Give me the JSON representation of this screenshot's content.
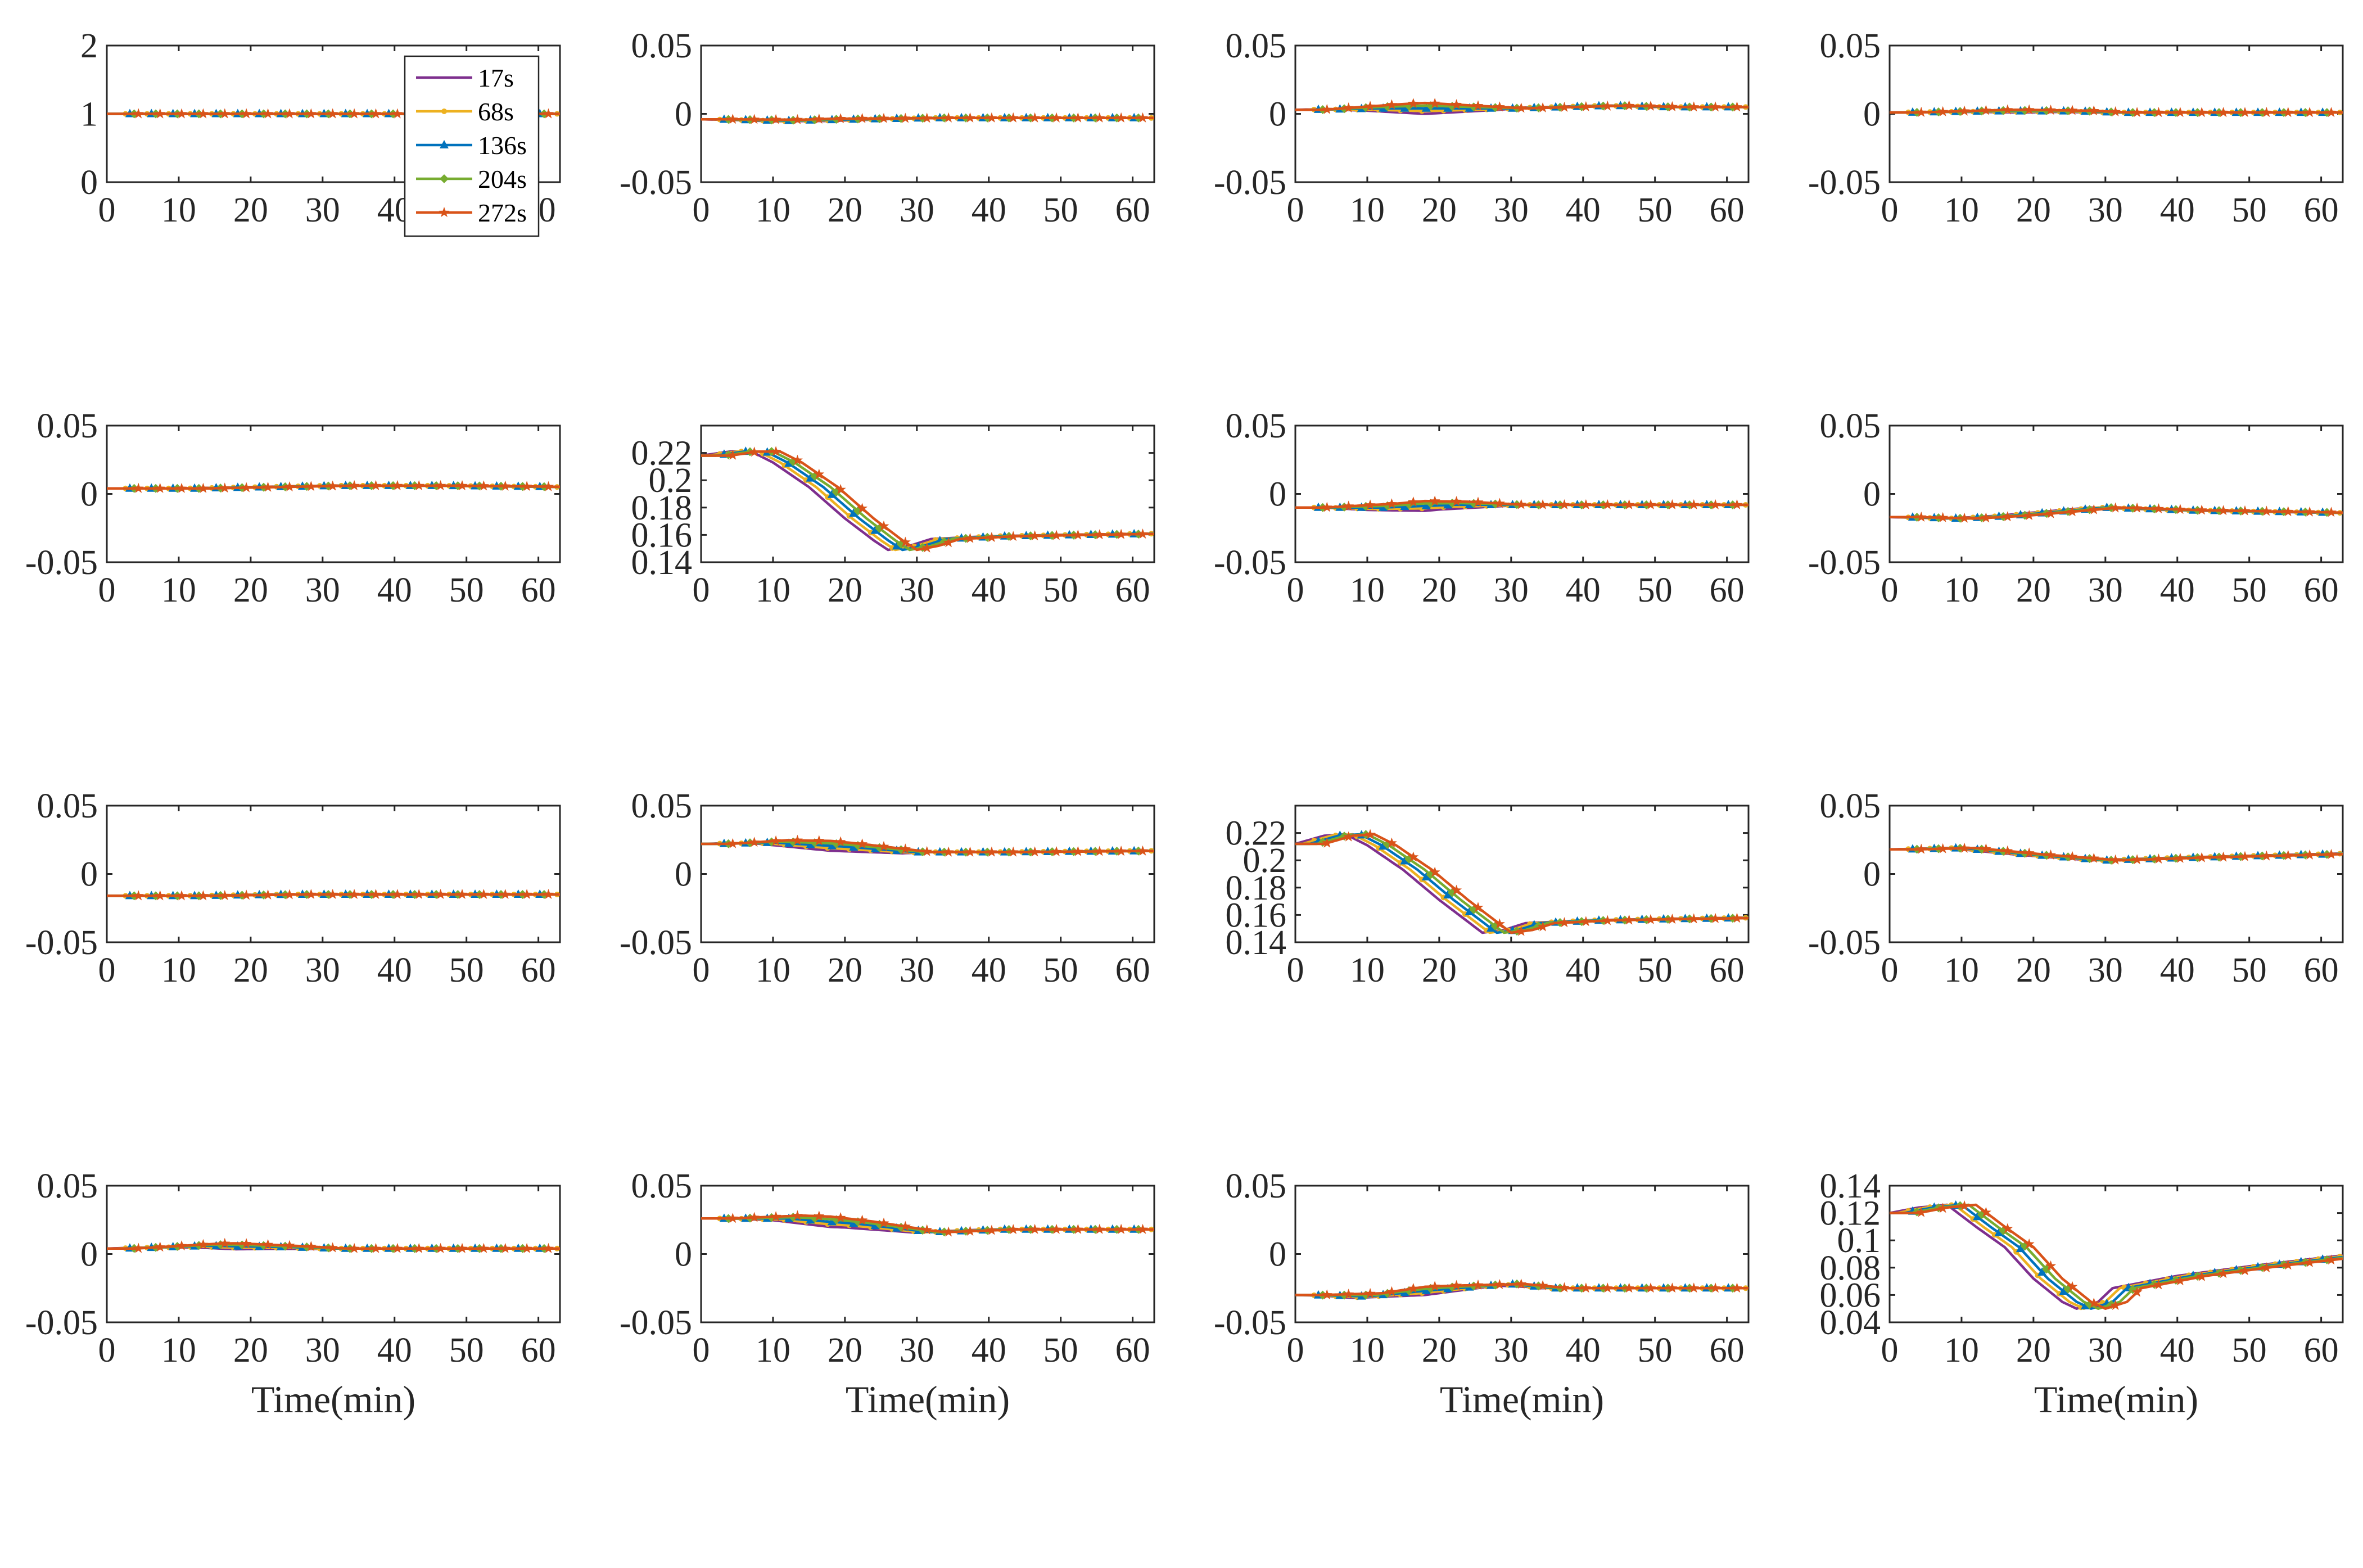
{
  "chart_data": {
    "type": "line",
    "series_names": [
      "17s",
      "68s",
      "136s",
      "204s",
      "272s"
    ],
    "series_colors": [
      "#7E2F8E",
      "#EDB120",
      "#0072BD",
      "#77AC30",
      "#D95319"
    ],
    "x_ticks": [
      0,
      10,
      20,
      30,
      40,
      50,
      60
    ],
    "xlim": [
      0,
      63
    ],
    "xlabel": "Time(min)",
    "legend_position": "top-right of first panel",
    "grid": false,
    "panels": [
      {
        "ylim": [
          0,
          2
        ],
        "yticks": [
          0,
          1,
          2
        ],
        "ytick_labels": [
          "0",
          "1",
          "2"
        ],
        "keypoints": [
          [
            0,
            1
          ],
          [
            63,
            1
          ]
        ],
        "spread": 0
      },
      {
        "ylim": [
          -0.05,
          0.05
        ],
        "yticks": [
          -0.05,
          0,
          0.05
        ],
        "ytick_labels": [
          "-0.05",
          "0",
          "0.05"
        ],
        "keypoints": [
          [
            0,
            -0.004
          ],
          [
            10,
            -0.005
          ],
          [
            20,
            -0.004
          ],
          [
            30,
            -0.003
          ],
          [
            40,
            -0.003
          ],
          [
            63,
            -0.003
          ]
        ],
        "spread": 0.001
      },
      {
        "ylim": [
          -0.05,
          0.05
        ],
        "yticks": [
          -0.05,
          0,
          0.05
        ],
        "ytick_labels": [
          "-0.05",
          "0",
          "0.05"
        ],
        "keypoints": [
          [
            0,
            0.003
          ],
          [
            10,
            0.004
          ],
          [
            20,
            0.004
          ],
          [
            28,
            0.004
          ],
          [
            35,
            0.005
          ],
          [
            42,
            0.006
          ],
          [
            50,
            0.005
          ],
          [
            63,
            0.005
          ]
        ],
        "spread": 0.004
      },
      {
        "ylim": [
          -0.05,
          0.05
        ],
        "yticks": [
          -0.05,
          0,
          0.05
        ],
        "ytick_labels": [
          "-0.05",
          "0",
          "0.05"
        ],
        "keypoints": [
          [
            0,
            0.001
          ],
          [
            12,
            0.002
          ],
          [
            24,
            0.002
          ],
          [
            30,
            0.001
          ],
          [
            63,
            0.001
          ]
        ],
        "spread": 0.001
      },
      {
        "ylim": [
          -0.05,
          0.05
        ],
        "yticks": [
          -0.05,
          0,
          0.05
        ],
        "ytick_labels": [
          "-0.05",
          "0",
          "0.05"
        ],
        "keypoints": [
          [
            0,
            0.004
          ],
          [
            10,
            0.004
          ],
          [
            20,
            0.005
          ],
          [
            30,
            0.006
          ],
          [
            45,
            0.006
          ],
          [
            63,
            0.005
          ]
        ],
        "spread": 0
      },
      {
        "ylim": [
          0.14,
          0.24
        ],
        "yticks": [
          0.14,
          0.16,
          0.18,
          0.2,
          0.22
        ],
        "ytick_labels": [
          "0.14",
          "0.16",
          "0.18",
          "0.2",
          "0.22"
        ],
        "keypoints": [
          [
            0,
            0.218
          ],
          [
            4,
            0.221
          ],
          [
            7,
            0.221
          ],
          [
            10,
            0.213
          ],
          [
            15,
            0.195
          ],
          [
            20,
            0.172
          ],
          [
            24,
            0.156
          ],
          [
            26,
            0.149
          ],
          [
            29,
            0.152
          ],
          [
            32,
            0.157
          ],
          [
            40,
            0.159
          ],
          [
            50,
            0.16
          ],
          [
            63,
            0.161
          ]
        ],
        "spread": 0
      },
      {
        "ylim": [
          -0.05,
          0.05
        ],
        "yticks": [
          -0.05,
          0,
          0.05
        ],
        "ytick_labels": [
          "-0.05",
          "0",
          "0.05"
        ],
        "keypoints": [
          [
            0,
            -0.01
          ],
          [
            10,
            -0.01
          ],
          [
            20,
            -0.008
          ],
          [
            28,
            -0.008
          ],
          [
            35,
            -0.008
          ],
          [
            63,
            -0.008
          ]
        ],
        "spread": 0.004
      },
      {
        "ylim": [
          -0.05,
          0.05
        ],
        "yticks": [
          -0.05,
          0,
          0.05
        ],
        "ytick_labels": [
          "-0.05",
          "0",
          "0.05"
        ],
        "keypoints": [
          [
            0,
            -0.017
          ],
          [
            8,
            -0.018
          ],
          [
            15,
            -0.016
          ],
          [
            28,
            -0.01
          ],
          [
            40,
            -0.012
          ],
          [
            63,
            -0.014
          ]
        ],
        "spread": 0
      },
      {
        "ylim": [
          -0.05,
          0.05
        ],
        "yticks": [
          -0.05,
          0,
          0.05
        ],
        "ytick_labels": [
          "-0.05",
          "0",
          "0.05"
        ],
        "keypoints": [
          [
            0,
            -0.016
          ],
          [
            10,
            -0.016
          ],
          [
            24,
            -0.015
          ],
          [
            40,
            -0.015
          ],
          [
            63,
            -0.015
          ]
        ],
        "spread": 0
      },
      {
        "ylim": [
          -0.05,
          0.05
        ],
        "yticks": [
          -0.05,
          0,
          0.05
        ],
        "ytick_labels": [
          "-0.05",
          "0",
          "0.05"
        ],
        "keypoints": [
          [
            0,
            0.022
          ],
          [
            8,
            0.023
          ],
          [
            18,
            0.02
          ],
          [
            28,
            0.016
          ],
          [
            40,
            0.016
          ],
          [
            63,
            0.017
          ]
        ],
        "spread": 0.003
      },
      {
        "ylim": [
          0.14,
          0.24
        ],
        "yticks": [
          0.14,
          0.16,
          0.18,
          0.2,
          0.22
        ],
        "ytick_labels": [
          "0.14",
          "0.16",
          "0.18",
          "0.2",
          "0.22"
        ],
        "keypoints": [
          [
            0,
            0.212
          ],
          [
            4,
            0.218
          ],
          [
            7,
            0.219
          ],
          [
            10,
            0.211
          ],
          [
            15,
            0.193
          ],
          [
            20,
            0.171
          ],
          [
            24,
            0.155
          ],
          [
            26,
            0.147
          ],
          [
            29,
            0.149
          ],
          [
            32,
            0.154
          ],
          [
            40,
            0.156
          ],
          [
            50,
            0.157
          ],
          [
            63,
            0.158
          ]
        ],
        "spread": 0
      },
      {
        "ylim": [
          -0.05,
          0.05
        ],
        "yticks": [
          -0.05,
          0,
          0.05
        ],
        "ytick_labels": [
          "-0.05",
          "0",
          "0.05"
        ],
        "keypoints": [
          [
            0,
            0.018
          ],
          [
            8,
            0.019
          ],
          [
            18,
            0.014
          ],
          [
            28,
            0.01
          ],
          [
            40,
            0.012
          ],
          [
            63,
            0.015
          ]
        ],
        "spread": 0
      },
      {
        "ylim": [
          -0.05,
          0.05
        ],
        "yticks": [
          -0.05,
          0,
          0.05
        ],
        "ytick_labels": [
          "-0.05",
          "0",
          "0.05"
        ],
        "keypoints": [
          [
            0,
            0.004
          ],
          [
            12,
            0.006
          ],
          [
            24,
            0.005
          ],
          [
            30,
            0.004
          ],
          [
            63,
            0.004
          ]
        ],
        "spread": 0.002
      },
      {
        "ylim": [
          -0.05,
          0.05
        ],
        "yticks": [
          -0.05,
          0,
          0.05
        ],
        "ytick_labels": [
          "-0.05",
          "0",
          "0.05"
        ],
        "keypoints": [
          [
            0,
            0.026
          ],
          [
            10,
            0.026
          ],
          [
            20,
            0.022
          ],
          [
            30,
            0.016
          ],
          [
            40,
            0.018
          ],
          [
            63,
            0.018
          ]
        ],
        "spread": 0.003
      },
      {
        "ylim": [
          -0.05,
          0.05
        ],
        "yticks": [
          -0.05,
          0,
          0.05
        ],
        "ytick_labels": [
          "-0.05",
          "0",
          "0.05"
        ],
        "keypoints": [
          [
            0,
            -0.03
          ],
          [
            8,
            -0.031
          ],
          [
            18,
            -0.026
          ],
          [
            28,
            -0.022
          ],
          [
            34,
            -0.025
          ],
          [
            63,
            -0.025
          ]
        ],
        "spread": 0.004
      },
      {
        "ylim": [
          0.04,
          0.14
        ],
        "yticks": [
          0.04,
          0.06,
          0.08,
          0.1,
          0.12,
          0.14
        ],
        "ytick_labels": [
          "0.04",
          "0.06",
          "0.08",
          "0.1",
          "0.12",
          "0.14"
        ],
        "keypoints": [
          [
            0,
            0.12
          ],
          [
            4,
            0.124
          ],
          [
            8,
            0.126
          ],
          [
            12,
            0.11
          ],
          [
            16,
            0.095
          ],
          [
            20,
            0.072
          ],
          [
            24,
            0.055
          ],
          [
            26,
            0.05
          ],
          [
            29,
            0.055
          ],
          [
            31,
            0.065
          ],
          [
            40,
            0.074
          ],
          [
            50,
            0.081
          ],
          [
            63,
            0.089
          ]
        ],
        "spread": 0
      }
    ]
  }
}
